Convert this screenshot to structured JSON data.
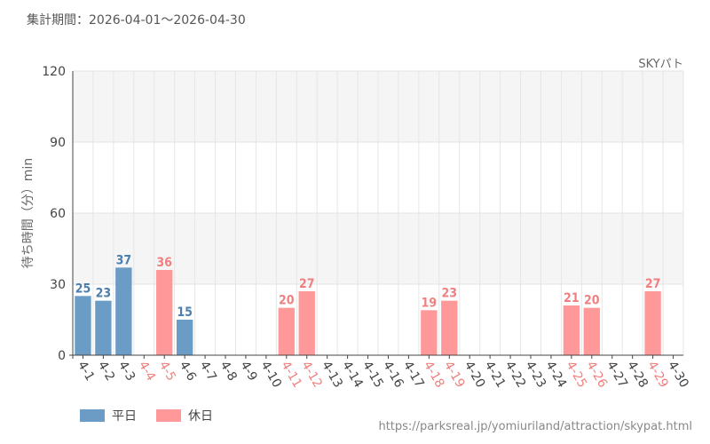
{
  "header": {
    "period_label": "集計期間：2026-04-01～2026-04-30"
  },
  "footer": {
    "source": "https://parksreal.jp/yomiuriland/attraction/skypat.html"
  },
  "legend": [
    {
      "label": "平日",
      "color": "#6a9cc6"
    },
    {
      "label": "休日",
      "color": "#ff9999"
    }
  ],
  "colors": {
    "weekday": "#6a9cc6",
    "holiday": "#ff9999",
    "weekday_text": "#4a7fae",
    "holiday_text": "#f08080",
    "axis_text": "#444444"
  },
  "chart_data": {
    "type": "bar",
    "series_name": "SKYパト",
    "ylabel": "待ち時間（分）min",
    "ylim": [
      0,
      120
    ],
    "yticks": [
      "0",
      "30",
      "60",
      "90",
      "120"
    ],
    "categories": [
      "4-1",
      "4-2",
      "4-3",
      "4-4",
      "4-5",
      "4-6",
      "4-7",
      "4-8",
      "4-9",
      "4-10",
      "4-11",
      "4-12",
      "4-13",
      "4-14",
      "4-15",
      "4-16",
      "4-17",
      "4-18",
      "4-19",
      "4-20",
      "4-21",
      "4-22",
      "4-23",
      "4-24",
      "4-25",
      "4-26",
      "4-27",
      "4-28",
      "4-29",
      "4-30"
    ],
    "values": [
      25,
      23,
      37,
      null,
      36,
      15,
      null,
      null,
      null,
      null,
      20,
      27,
      null,
      null,
      null,
      null,
      null,
      19,
      23,
      null,
      null,
      null,
      null,
      null,
      21,
      20,
      null,
      null,
      27,
      null
    ],
    "holiday": [
      false,
      false,
      false,
      true,
      true,
      false,
      false,
      false,
      false,
      false,
      true,
      true,
      false,
      false,
      false,
      false,
      false,
      true,
      true,
      false,
      false,
      false,
      false,
      false,
      true,
      true,
      false,
      false,
      true,
      false
    ],
    "grid": true
  }
}
